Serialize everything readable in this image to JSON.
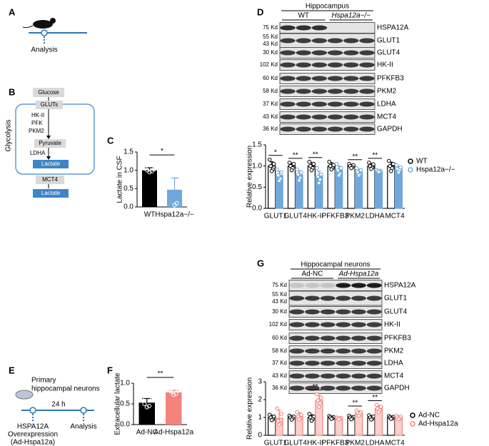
{
  "panel_a": {
    "label": "A",
    "step": "Analysis"
  },
  "panel_b": {
    "label": "B",
    "side": "Glycolysis",
    "nodes": [
      "Glucose",
      "GLUTs",
      "Pyruvate",
      "Lactate",
      "MCT4",
      "Lactate"
    ],
    "enzymes": [
      "HK-II",
      "PFK",
      "PKM2"
    ],
    "enzyme2": "LDHA"
  },
  "panel_c": {
    "label": "C"
  },
  "panel_d": {
    "label": "D",
    "header": "Hippocampus",
    "groups": [
      "WT",
      "Hspa12a−/−"
    ],
    "blot": [
      {
        "kd": [
          "75 Kd"
        ],
        "protein": "HSPA12A"
      },
      {
        "kd": [
          "55 Kd",
          "43 Kd"
        ],
        "protein": "GLUT1"
      },
      {
        "kd": [
          "30 Kd"
        ],
        "protein": "GLUT4"
      },
      {
        "kd": [
          "102 Kd"
        ],
        "protein": "HK-II"
      },
      {
        "kd": [
          "60 Kd"
        ],
        "protein": "PFKFB3"
      },
      {
        "kd": [
          "58 Kd"
        ],
        "protein": "PKM2"
      },
      {
        "kd": [
          "37 Kd"
        ],
        "protein": "LDHA"
      },
      {
        "kd": [
          "43 Kd"
        ],
        "protein": "MCT4"
      },
      {
        "kd": [
          "36 Kd"
        ],
        "protein": "GAPDH"
      }
    ]
  },
  "panel_e": {
    "label": "E",
    "cells": [
      "Primary",
      "hippocampal neurons"
    ],
    "time": "24 h",
    "start": [
      "HSPA12A",
      "Overexpression",
      "(Ad-Hspa12a)"
    ],
    "end": "Analysis"
  },
  "panel_f": {
    "label": "F"
  },
  "panel_g": {
    "label": "G",
    "header": "Hippocampal neurons",
    "groups": [
      "Ad-NC",
      "Ad-Hspa12a"
    ],
    "blot": [
      {
        "kd": [
          "75 Kd"
        ],
        "protein": "HSPA12A"
      },
      {
        "kd": [
          "55 Kd",
          "43 Kd"
        ],
        "protein": "GLUT1"
      },
      {
        "kd": [
          "30 Kd"
        ],
        "protein": "GLUT4"
      },
      {
        "kd": [
          "102 Kd"
        ],
        "protein": "HK-II"
      },
      {
        "kd": [
          "60 Kd"
        ],
        "protein": "PFKFB3"
      },
      {
        "kd": [
          "58 Kd"
        ],
        "protein": "PKM2"
      },
      {
        "kd": [
          "37 Kd"
        ],
        "protein": "LDHA"
      },
      {
        "kd": [
          "43 Kd"
        ],
        "protein": "MCT4"
      },
      {
        "kd": [
          "36 Kd"
        ],
        "protein": "GAPDH"
      }
    ]
  },
  "chart_data": [
    {
      "type": "bar",
      "ylabel": "Lactate in CSF",
      "categories": [
        "WT",
        "Hspa12a−/−"
      ],
      "values": [
        1.0,
        0.47
      ],
      "errors": [
        0.07,
        0.32
      ],
      "points": [
        [
          1.05,
          1.03,
          1.0,
          0.98,
          0.95
        ],
        [
          0.75,
          0.6,
          0.55,
          0.1,
          0.05
        ]
      ],
      "colors": [
        "#000000",
        "#6fa8dc"
      ],
      "fills": [
        "#000000",
        "#6fa8dc"
      ],
      "ylim": [
        0,
        1.5
      ],
      "yticks": [
        {
          "value": 0,
          "label": "0.0"
        },
        0.5,
        {
          "value": 1,
          "label": "1.0"
        },
        1.5
      ],
      "significance": "*"
    },
    {
      "type": "grouped_bar",
      "ylabel": "Relative expression",
      "categories": [
        "GLUT1",
        "GLUT4",
        "HK-II",
        "PFKFB3",
        "PKM2",
        "LDHA",
        "MCT4"
      ],
      "series": [
        {
          "name": "WT",
          "color": "#000000",
          "fill": "#ffffff",
          "values": [
            1.0,
            1.0,
            1.0,
            1.0,
            1.0,
            1.0,
            1.0
          ],
          "errors": [
            0.1,
            0.07,
            0.08,
            0.08,
            0.04,
            0.06,
            0.09
          ],
          "points": [
            [
              1.15,
              1.05,
              1.0,
              0.92,
              0.88
            ],
            [
              1.08,
              1.05,
              1.0,
              0.95,
              0.9
            ],
            [
              1.1,
              1.05,
              1.0,
              0.95,
              0.9
            ],
            [
              1.1,
              1.02,
              1.0,
              0.95,
              0.92
            ],
            [
              1.05,
              1.02,
              1.0,
              0.97,
              0.95
            ],
            [
              1.08,
              1.04,
              1.0,
              0.96,
              0.93
            ],
            [
              1.12,
              1.05,
              1.0,
              0.95,
              0.88
            ]
          ]
        },
        {
          "name": "Hspa12a−/−",
          "color": "#6fa8dc",
          "fill": "#6fa8dc",
          "values": [
            0.78,
            0.79,
            0.76,
            0.9,
            0.86,
            0.88,
            0.93
          ],
          "errors": [
            0.1,
            0.1,
            0.12,
            0.1,
            0.07,
            0.02,
            0.07
          ],
          "points": [
            [
              0.92,
              0.85,
              0.78,
              0.7,
              0.65
            ],
            [
              0.92,
              0.85,
              0.8,
              0.72,
              0.66
            ],
            [
              0.95,
              0.8,
              0.75,
              0.68,
              0.6
            ],
            [
              1.05,
              0.95,
              0.9,
              0.82,
              0.78
            ],
            [
              0.95,
              0.9,
              0.85,
              0.8,
              0.78
            ],
            [
              0.91,
              0.89,
              0.88,
              0.87,
              0.86
            ],
            [
              1.02,
              0.97,
              0.93,
              0.9,
              0.85
            ]
          ]
        }
      ],
      "ylim": [
        0,
        1.5
      ],
      "yticks": [
        {
          "value": 0,
          "label": "0.0"
        },
        0.5,
        {
          "value": 1,
          "label": "1.0"
        },
        1.5
      ],
      "significance": [
        "*",
        "**",
        "**",
        null,
        "**",
        "**",
        null
      ],
      "legend": "right"
    },
    {
      "type": "bar",
      "ylabel": "Extracellular lactate",
      "categories": [
        "Ad-NC",
        "Ad-Hspa12a"
      ],
      "values": [
        0.53,
        0.78
      ],
      "errors": [
        0.1,
        0.05
      ],
      "points": [
        [
          0.65,
          0.6,
          0.5,
          0.45,
          0.42
        ],
        [
          0.85,
          0.83,
          0.8,
          0.75,
          0.72
        ]
      ],
      "colors": [
        "#000000",
        "#f4837d"
      ],
      "fills": [
        "#000000",
        "#f4837d"
      ],
      "ylim": [
        0,
        1.0
      ],
      "yticks": [
        {
          "value": 0,
          "label": "0.0"
        },
        0.5,
        {
          "value": 1,
          "label": "1.0"
        }
      ],
      "significance": "**"
    },
    {
      "type": "grouped_bar",
      "ylabel": "Relative expression",
      "categories": [
        "GLUT1",
        "GLUT4",
        "HK-II",
        "PFKFB3",
        "PKM2",
        "LDHA",
        "MCT4"
      ],
      "series": [
        {
          "name": "Ad-NC",
          "color": "#000000",
          "fill": "#ffffff",
          "values": [
            1.0,
            1.0,
            1.0,
            1.0,
            1.0,
            1.0,
            1.0
          ],
          "errors": [
            0.12,
            0.1,
            0.15,
            0.08,
            0.08,
            0.1,
            0.08
          ],
          "points": [
            [
              1.15,
              1.05,
              1.0,
              0.9,
              0.85
            ],
            [
              1.1,
              1.05,
              1.0,
              0.95,
              0.88
            ],
            [
              1.2,
              1.05,
              1.0,
              0.9,
              0.82
            ],
            [
              1.08,
              1.02,
              1.0,
              0.95,
              0.92
            ],
            [
              1.1,
              1.03,
              1.0,
              0.95,
              0.9
            ],
            [
              1.12,
              1.05,
              1.0,
              0.93,
              0.88
            ],
            [
              1.08,
              1.03,
              1.0,
              0.95,
              0.92
            ]
          ]
        },
        {
          "name": "Ad-Hspa12a",
          "color": "#f4837d",
          "fill": "#fbd0cc",
          "values": [
            0.95,
            1.08,
            1.95,
            0.95,
            1.25,
            1.5,
            1.0
          ],
          "errors": [
            0.45,
            0.2,
            0.3,
            0.08,
            0.12,
            0.18,
            0.1
          ],
          "points": [
            [
              1.5,
              1.2,
              0.8,
              0.65,
              0.6
            ],
            [
              1.3,
              1.15,
              1.05,
              0.95,
              0.9
            ],
            [
              2.3,
              2.1,
              1.95,
              1.8,
              1.6
            ],
            [
              1.0,
              0.98,
              0.95,
              0.92,
              0.9
            ],
            [
              1.4,
              1.3,
              1.25,
              1.2,
              1.1
            ],
            [
              1.7,
              1.6,
              1.5,
              1.4,
              1.3
            ],
            [
              1.1,
              1.05,
              1.0,
              0.95,
              0.9
            ]
          ]
        }
      ],
      "ylim": [
        0,
        3
      ],
      "yticks": [
        0,
        1,
        2,
        3
      ],
      "significance": [
        null,
        null,
        "**",
        null,
        "**",
        "**",
        null
      ],
      "legend": "right"
    }
  ]
}
